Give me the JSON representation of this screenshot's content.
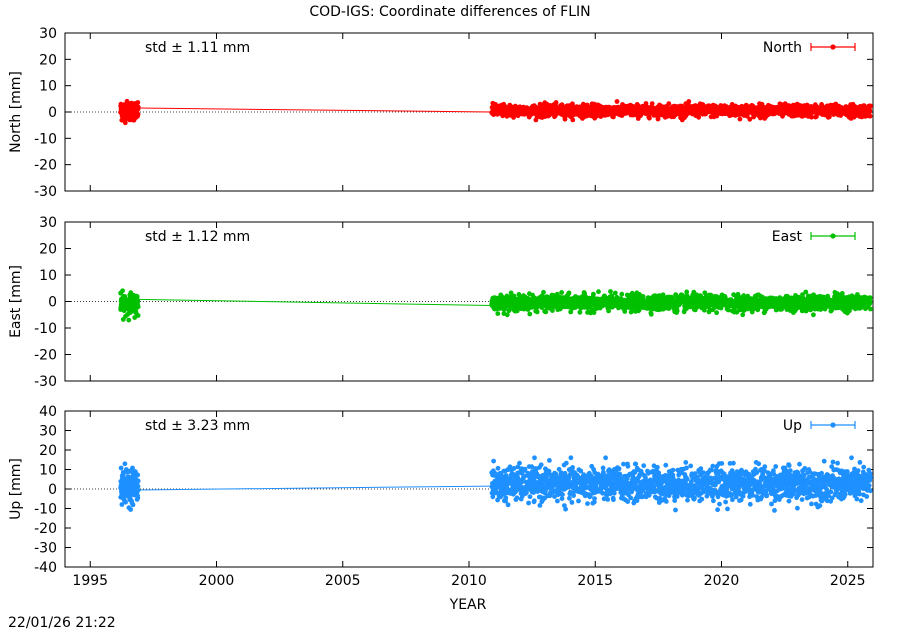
{
  "title": "COD-IGS: Coordinate differences of FLIN",
  "xlabel": "YEAR",
  "timestamp": "22/01/26 21:22",
  "chart_data": [
    {
      "type": "scatter",
      "panel": "north",
      "ylabel": "North [mm]",
      "legend": "North",
      "std_label": "std ± 1.11 mm",
      "color": "#ff0000",
      "ylim": [
        -30,
        30
      ],
      "yticks": [
        30,
        20,
        10,
        0,
        -10,
        -20,
        -30
      ],
      "xlim": [
        1994,
        2026
      ],
      "xticks": [
        1995,
        2000,
        2005,
        2010,
        2015,
        2020,
        2025
      ],
      "series": [
        {
          "segment": "1996-1997",
          "x_range": [
            1996.2,
            1996.9
          ],
          "y_range": [
            -5,
            6
          ],
          "connect_to": [
            1996.9,
            1.5
          ]
        },
        {
          "segment": "2011-2026",
          "x_range": [
            2010.9,
            2025.9
          ],
          "y_range": [
            -3,
            4
          ],
          "start": [
            2010.9,
            0
          ]
        }
      ],
      "trend_line": {
        "x": [
          1996.9,
          2010.9
        ],
        "y": [
          1.5,
          0.0
        ]
      }
    },
    {
      "type": "scatter",
      "panel": "east",
      "ylabel": "East [mm]",
      "legend": "East",
      "std_label": "std ± 1.12 mm",
      "color": "#00c000",
      "ylim": [
        -30,
        30
      ],
      "yticks": [
        30,
        20,
        10,
        0,
        -10,
        -20,
        -30
      ],
      "xlim": [
        1994,
        2026
      ],
      "xticks": [
        1995,
        2000,
        2005,
        2010,
        2015,
        2020,
        2025
      ],
      "series": [
        {
          "segment": "1996-1997",
          "x_range": [
            1996.2,
            1996.9
          ],
          "y_range": [
            -7,
            5
          ]
        },
        {
          "segment": "2011-2026",
          "x_range": [
            2010.9,
            2025.9
          ],
          "y_range": [
            -5,
            4
          ]
        }
      ],
      "trend_line": {
        "x": [
          1996.9,
          2010.9
        ],
        "y": [
          0.8,
          -1.5
        ]
      }
    },
    {
      "type": "scatter",
      "panel": "up",
      "ylabel": "Up [mm]",
      "legend": "Up",
      "std_label": "std ± 3.23 mm",
      "color": "#1e90ff",
      "ylim": [
        -40,
        40
      ],
      "yticks": [
        40,
        30,
        20,
        10,
        0,
        -10,
        -20,
        -30,
        -40
      ],
      "xlim": [
        1994,
        2026
      ],
      "xticks": [
        1995,
        2000,
        2005,
        2010,
        2015,
        2020,
        2025
      ],
      "series": [
        {
          "segment": "1996-1997",
          "x_range": [
            1996.2,
            1996.9
          ],
          "y_range": [
            -11,
            15
          ]
        },
        {
          "segment": "2011-2026",
          "x_range": [
            2010.9,
            2025.9
          ],
          "y_range": [
            -11,
            16
          ]
        }
      ],
      "trend_line": {
        "x": [
          1996.9,
          2010.9
        ],
        "y": [
          -0.5,
          1.5
        ]
      }
    }
  ]
}
